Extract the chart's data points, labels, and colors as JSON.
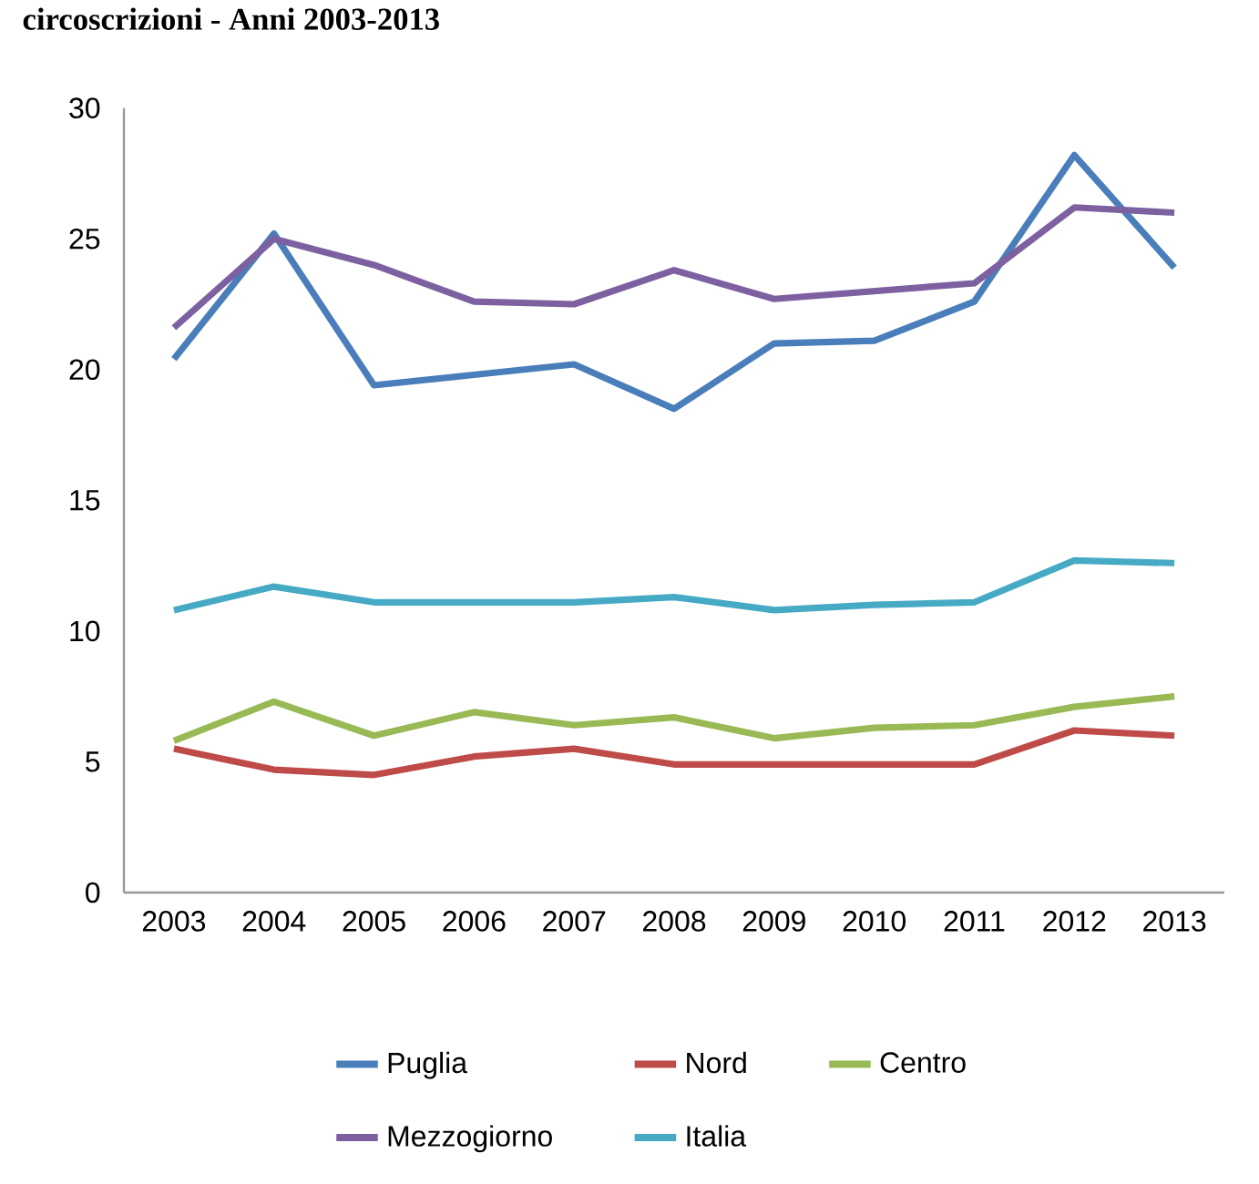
{
  "chart_data": {
    "type": "line",
    "title": "circoscrizioni - Anni 2003-2013",
    "categories": [
      "2003",
      "2004",
      "2005",
      "2006",
      "2007",
      "2008",
      "2009",
      "2010",
      "2011",
      "2012",
      "2013"
    ],
    "series": [
      {
        "name": "Puglia",
        "color": "#4a7ebb",
        "values": [
          20.4,
          25.2,
          19.4,
          19.8,
          20.2,
          18.5,
          21.0,
          21.1,
          22.6,
          28.2,
          23.9
        ]
      },
      {
        "name": "Nord",
        "color": "#be4b48",
        "values": [
          5.5,
          4.7,
          4.5,
          5.2,
          5.5,
          4.9,
          4.9,
          4.9,
          4.9,
          6.2,
          6.0
        ]
      },
      {
        "name": "Centro",
        "color": "#98b954",
        "values": [
          5.8,
          7.3,
          6.0,
          6.9,
          6.4,
          6.7,
          5.9,
          6.3,
          6.4,
          7.1,
          7.5
        ]
      },
      {
        "name": "Mezzogiorno",
        "color": "#7d60a0",
        "values": [
          21.6,
          25.0,
          24.0,
          22.6,
          22.5,
          23.8,
          22.7,
          23.0,
          23.3,
          26.2,
          26.0
        ]
      },
      {
        "name": "Italia",
        "color": "#46aac5",
        "values": [
          10.8,
          11.7,
          11.1,
          11.1,
          11.1,
          11.3,
          10.8,
          11.0,
          11.1,
          12.7,
          12.6
        ]
      }
    ],
    "ylim": [
      0,
      30
    ],
    "yticks": [
      0,
      5,
      10,
      15,
      20,
      25,
      30
    ],
    "grid": false,
    "legend": "bottom"
  }
}
